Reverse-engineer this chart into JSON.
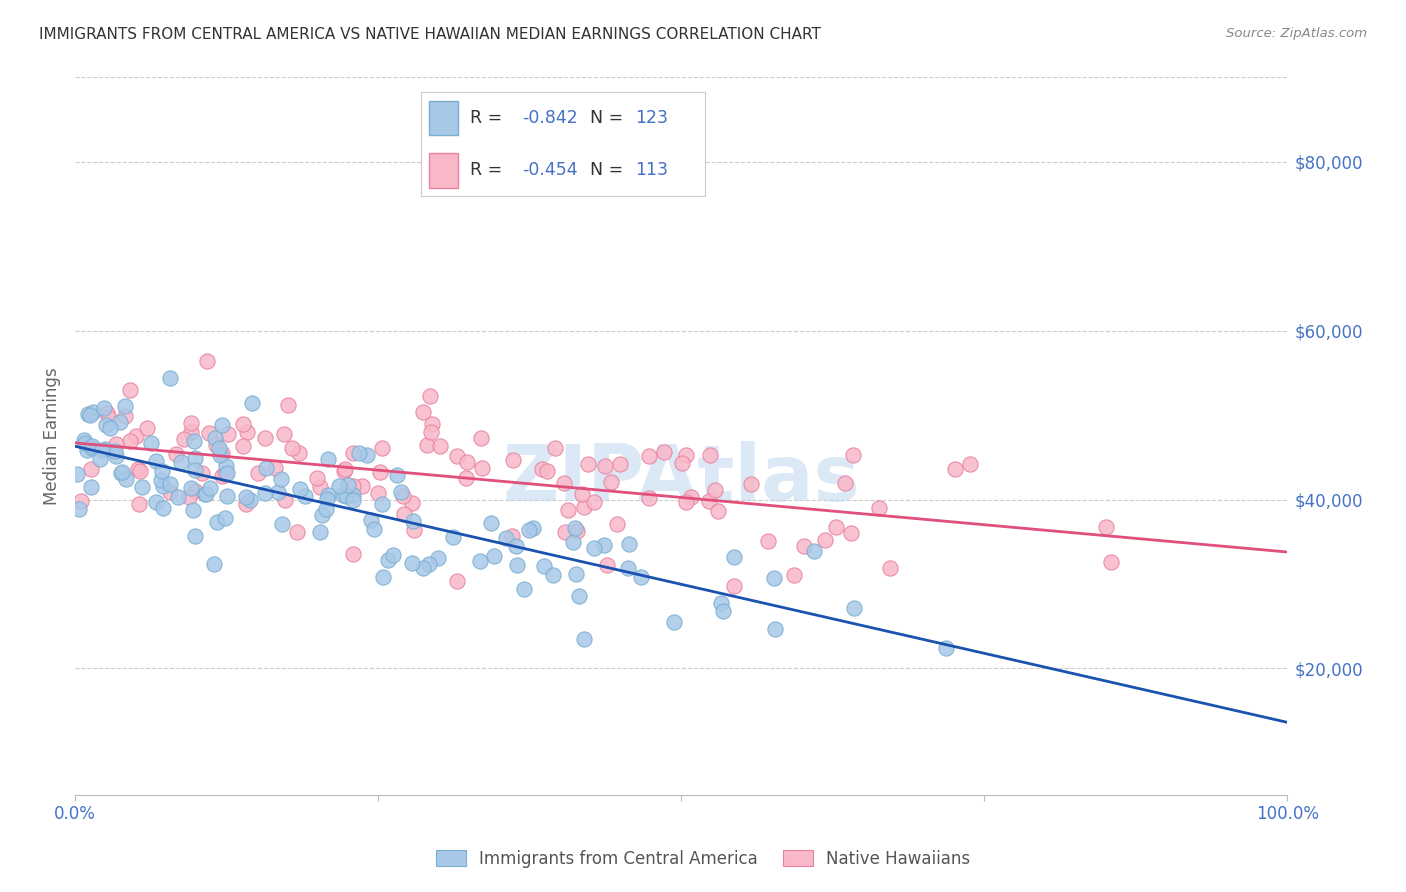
{
  "title": "IMMIGRANTS FROM CENTRAL AMERICA VS NATIVE HAWAIIAN MEDIAN EARNINGS CORRELATION CHART",
  "source": "Source: ZipAtlas.com",
  "ylabel": "Median Earnings",
  "y_ticks": [
    20000,
    40000,
    60000,
    80000
  ],
  "y_tick_labels": [
    "$20,000",
    "$40,000",
    "$60,000",
    "$80,000"
  ],
  "blue_R": "-0.842",
  "blue_N": 123,
  "pink_R": "-0.454",
  "pink_N": 113,
  "blue_color": "#a8c8e8",
  "blue_edge_color": "#7aaed0",
  "pink_color": "#f8b8c8",
  "pink_edge_color": "#e880a0",
  "blue_line_color": "#1a52b0",
  "pink_line_color": "#e0507a",
  "watermark": "ZIPAtlas",
  "background_color": "#ffffff",
  "grid_color": "#cccccc",
  "title_color": "#333333",
  "axis_label_color": "#4472c4",
  "right_tick_color": "#4472c4",
  "legend_text_color": "#333333",
  "legend_value_color": "#4472c4",
  "xlim": [
    0,
    1
  ],
  "ylim": [
    5000,
    90000
  ],
  "blue_intercept": 47000,
  "blue_slope": -33000,
  "blue_noise_std": 4500,
  "pink_intercept": 47000,
  "pink_slope": -12000,
  "pink_noise_std": 8000
}
